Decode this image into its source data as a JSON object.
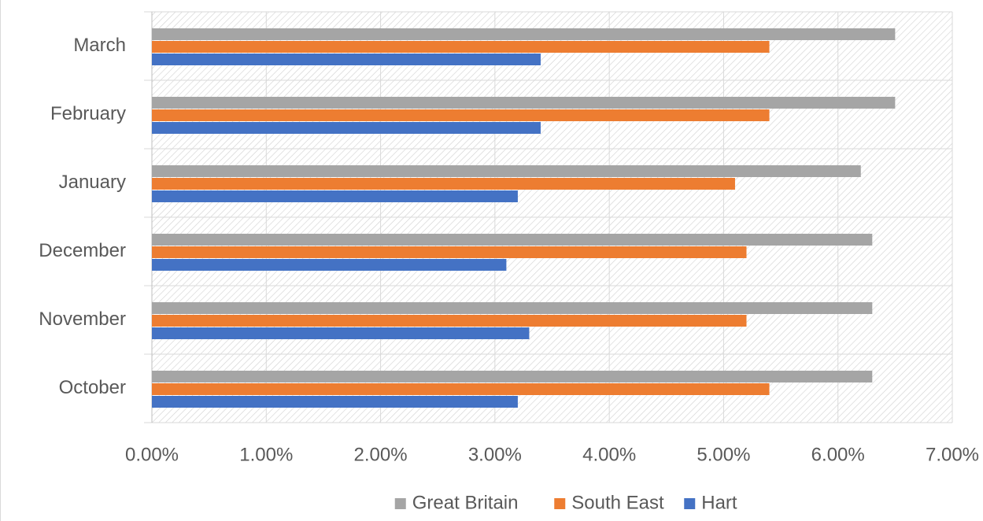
{
  "chart_data": {
    "type": "hbar",
    "categories": [
      "March",
      "February",
      "January",
      "December",
      "November",
      "October"
    ],
    "series": [
      {
        "name": "Great Britain",
        "color": "#a5a5a5",
        "values": [
          6.5,
          6.5,
          6.2,
          6.3,
          6.3,
          6.3
        ]
      },
      {
        "name": "South East",
        "color": "#ed7d31",
        "values": [
          5.4,
          5.4,
          5.1,
          5.2,
          5.2,
          5.4
        ]
      },
      {
        "name": "Hart",
        "color": "#4472c4",
        "values": [
          3.4,
          3.4,
          3.2,
          3.1,
          3.3,
          3.2
        ]
      }
    ],
    "xlim": [
      0,
      7
    ],
    "xticks": [
      {
        "value": 0,
        "label": "0.00%"
      },
      {
        "value": 1,
        "label": "1.00%"
      },
      {
        "value": 2,
        "label": "2.00%"
      },
      {
        "value": 3,
        "label": "3.00%"
      },
      {
        "value": 4,
        "label": "4.00%"
      },
      {
        "value": 5,
        "label": "5.00%"
      },
      {
        "value": 6,
        "label": "6.00%"
      },
      {
        "value": 7,
        "label": "7.00%"
      }
    ],
    "grid": true,
    "legend": "bottom"
  }
}
